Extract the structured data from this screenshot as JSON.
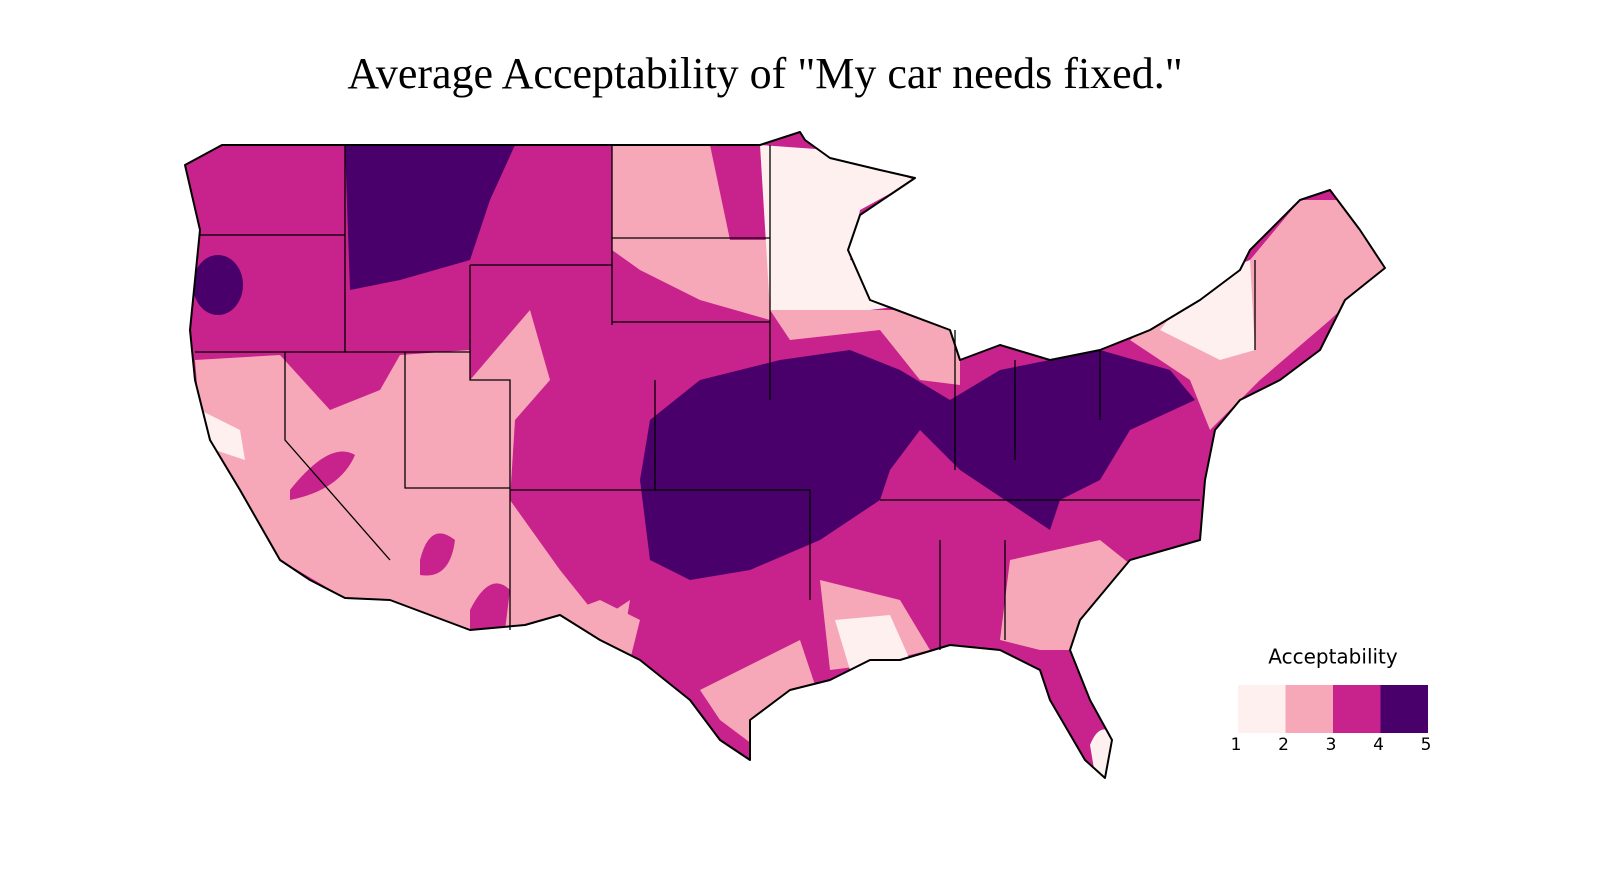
{
  "title": "Average Acceptability of \"My car needs fixed.\"",
  "legend": {
    "title": "Acceptability",
    "colors": [
      "#fdf0ef",
      "#f7a8b8",
      "#c8228c",
      "#49006a"
    ],
    "ticks": [
      1,
      2,
      3,
      4,
      5
    ]
  }
}
